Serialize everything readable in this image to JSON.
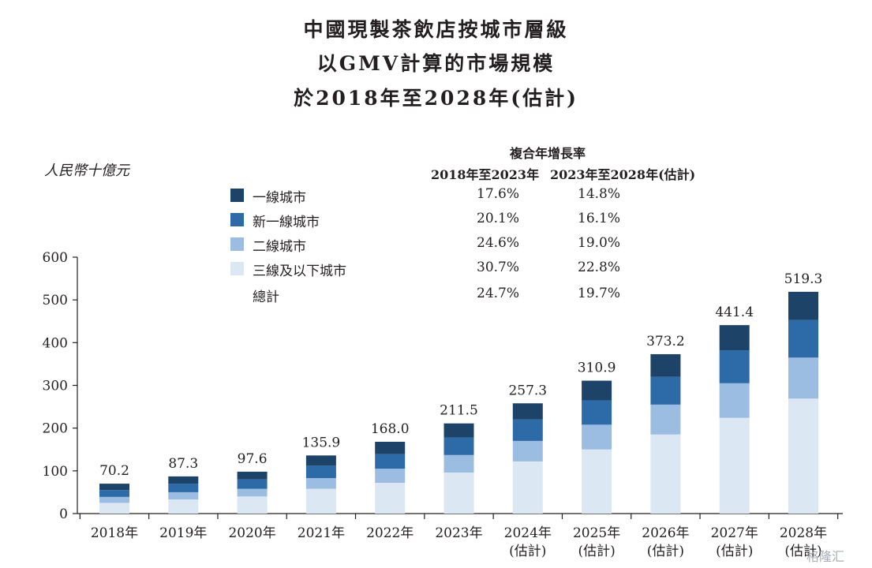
{
  "title_lines": [
    "中國現製茶飲店按城市層級",
    "以GMV計算的市場規模",
    "於2018年至2028年(估計)"
  ],
  "unit_label": "人民幣十億元",
  "cagr": {
    "heading": "複合年增長率",
    "col1": "2018年至2023年",
    "col2": "2023年至2028年(估計)"
  },
  "legend": [
    {
      "label": "一線城市",
      "color": "#1e4368",
      "cagr1": "17.6%",
      "cagr2": "14.8%"
    },
    {
      "label": "新一線城市",
      "color": "#2d6aa8",
      "cagr1": "20.1%",
      "cagr2": "16.1%"
    },
    {
      "label": "二線城市",
      "color": "#9cbde2",
      "cagr1": "24.6%",
      "cagr2": "19.0%"
    },
    {
      "label": "三線及以下城市",
      "color": "#dce7f4",
      "cagr1": "30.7%",
      "cagr2": "22.8%"
    },
    {
      "label": "總計",
      "color": "",
      "cagr1": "24.7%",
      "cagr2": "19.7%"
    }
  ],
  "chart_data": {
    "type": "bar",
    "stacked": true,
    "ylim": [
      0,
      600
    ],
    "yticks": [
      0,
      100,
      200,
      300,
      400,
      500,
      600
    ],
    "categories": [
      "2018年",
      "2019年",
      "2020年",
      "2021年",
      "2022年",
      "2023年",
      "2024年\n(估計)",
      "2025年\n(估計)",
      "2026年\n(估計)",
      "2027年\n(估計)",
      "2028年\n(估計)"
    ],
    "totals": [
      "70.2",
      "87.3",
      "97.6",
      "135.9",
      "168.0",
      "211.5",
      "257.3",
      "310.9",
      "373.2",
      "441.4",
      "519.3"
    ],
    "series": [
      {
        "name": "三線及以下城市",
        "values": [
          25,
          33,
          40,
          58,
          72,
          96,
          122,
          150,
          185,
          224,
          269
        ]
      },
      {
        "name": "二線城市",
        "values": [
          14,
          17,
          18,
          25,
          33,
          41,
          48,
          58,
          70,
          81,
          96
        ]
      },
      {
        "name": "新一線城市",
        "values": [
          16,
          20,
          22,
          29,
          34,
          41,
          50,
          57,
          65,
          77,
          88
        ]
      },
      {
        "name": "一線城市",
        "values": [
          15,
          17,
          18,
          24,
          29,
          33,
          38,
          46,
          53,
          59,
          66
        ]
      }
    ],
    "title": "中國現製茶飲店按城市層級以GMV計算的市場規模於2018年至2028年(估計)",
    "ylabel": "人民幣十億元"
  },
  "watermark": "格隆汇"
}
